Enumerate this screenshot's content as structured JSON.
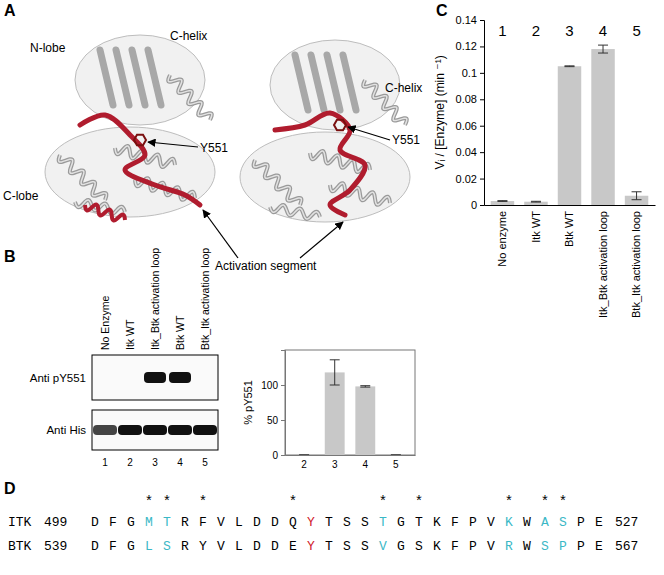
{
  "panel_labels": [
    "A",
    "B",
    "C",
    "D"
  ],
  "structure": {
    "labels": [
      "N-lobe",
      "C-helix",
      "Y551",
      "C-lobe",
      "Activation segment",
      "C-helix",
      "Y551"
    ]
  },
  "blot": {
    "lanes": [
      "No Enzyme",
      "Itk WT",
      "Itk_Btk activation loop",
      "Btk WT",
      "Btk_Itk activation loop"
    ],
    "lane_numbers": [
      "1",
      "2",
      "3",
      "4",
      "5"
    ],
    "antibodies": [
      "Anti pY551",
      "Anti His"
    ]
  },
  "chart_data": [
    {
      "type": "bar",
      "categories": [
        "2",
        "3",
        "4",
        "5"
      ],
      "values": [
        0,
        118,
        98,
        0
      ],
      "errors": [
        0,
        18,
        1,
        0
      ],
      "y_label": "% pY551",
      "ylim": [
        0,
        150
      ],
      "yticks": [
        0,
        50,
        100
      ],
      "color": "#c8c8c8"
    },
    {
      "type": "bar",
      "categories": [
        "No enzyme",
        "Itk WT",
        "Btk WT",
        "Itk_Btk activation loop",
        "Btk_Itk activation loop"
      ],
      "values": [
        0.003,
        0.0025,
        0.105,
        0.118,
        0.007
      ],
      "errors": [
        0.0003,
        0.0003,
        0.0003,
        0.003,
        0.003
      ],
      "annotations": [
        "1",
        "2",
        "3",
        "4",
        "5"
      ],
      "y_label": "Vᵢ / [Enzyme] (min ⁻¹)",
      "ylim": [
        0,
        0.14
      ],
      "yticks": [
        0,
        0.02,
        0.04,
        0.06,
        0.08,
        0.1,
        0.12,
        0.14
      ],
      "color": "#c8c8c8"
    }
  ],
  "alignment": {
    "marks": [
      null,
      null,
      null,
      "*",
      "*",
      null,
      "*",
      null,
      null,
      null,
      null,
      "*",
      null,
      null,
      null,
      null,
      "*",
      null,
      "*",
      null,
      null,
      null,
      null,
      "*",
      null,
      "*",
      "*",
      null,
      null
    ],
    "rows": [
      {
        "name": "ITK",
        "start": 499,
        "end": 527,
        "residues": [
          {
            "aa": "D"
          },
          {
            "aa": "F"
          },
          {
            "aa": "G"
          },
          {
            "aa": "M",
            "color": "#3ab8c6"
          },
          {
            "aa": "T",
            "color": "#3ab8c6"
          },
          {
            "aa": "R"
          },
          {
            "aa": "F"
          },
          {
            "aa": "V"
          },
          {
            "aa": "L"
          },
          {
            "aa": "D"
          },
          {
            "aa": "D"
          },
          {
            "aa": "Q"
          },
          {
            "aa": "Y",
            "color": "#d0202a"
          },
          {
            "aa": "T"
          },
          {
            "aa": "S"
          },
          {
            "aa": "S"
          },
          {
            "aa": "T",
            "color": "#3ab8c6"
          },
          {
            "aa": "G"
          },
          {
            "aa": "T"
          },
          {
            "aa": "K"
          },
          {
            "aa": "F"
          },
          {
            "aa": "P"
          },
          {
            "aa": "V"
          },
          {
            "aa": "K",
            "color": "#3ab8c6"
          },
          {
            "aa": "W"
          },
          {
            "aa": "A",
            "color": "#3ab8c6"
          },
          {
            "aa": "S",
            "color": "#3ab8c6"
          },
          {
            "aa": "P"
          },
          {
            "aa": "E"
          }
        ]
      },
      {
        "name": "BTK",
        "start": 539,
        "end": 567,
        "residues": [
          {
            "aa": "D"
          },
          {
            "aa": "F"
          },
          {
            "aa": "G"
          },
          {
            "aa": "L",
            "color": "#3ab8c6"
          },
          {
            "aa": "S",
            "color": "#3ab8c6"
          },
          {
            "aa": "R"
          },
          {
            "aa": "Y"
          },
          {
            "aa": "V"
          },
          {
            "aa": "L"
          },
          {
            "aa": "D"
          },
          {
            "aa": "D"
          },
          {
            "aa": "E"
          },
          {
            "aa": "Y",
            "color": "#d0202a"
          },
          {
            "aa": "T"
          },
          {
            "aa": "S"
          },
          {
            "aa": "S"
          },
          {
            "aa": "V",
            "color": "#3ab8c6"
          },
          {
            "aa": "G"
          },
          {
            "aa": "S"
          },
          {
            "aa": "K"
          },
          {
            "aa": "F"
          },
          {
            "aa": "P"
          },
          {
            "aa": "V"
          },
          {
            "aa": "R",
            "color": "#3ab8c6"
          },
          {
            "aa": "W"
          },
          {
            "aa": "S",
            "color": "#3ab8c6"
          },
          {
            "aa": "P",
            "color": "#3ab8c6"
          },
          {
            "aa": "P"
          },
          {
            "aa": "E"
          }
        ]
      }
    ]
  }
}
